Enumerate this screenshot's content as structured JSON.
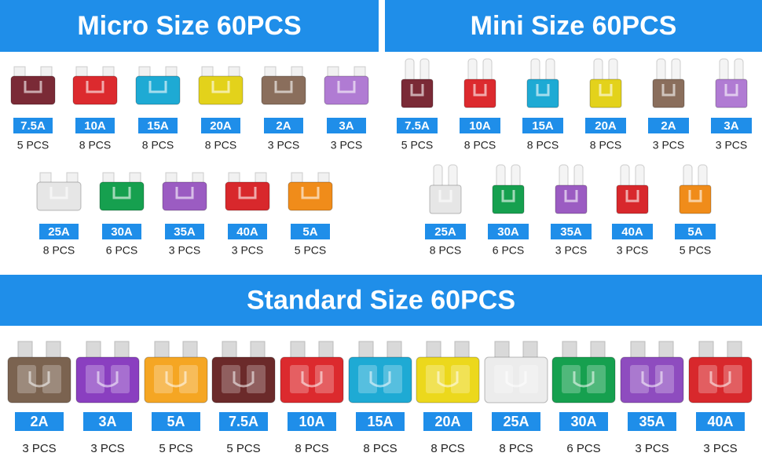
{
  "sections": [
    {
      "title": "Micro Size 60PCS",
      "rows": [
        [
          {
            "rating": "7.5A",
            "count": "5 PCS",
            "color": "#7a2a36"
          },
          {
            "rating": "10A",
            "count": "8 PCS",
            "color": "#dc2a2e"
          },
          {
            "rating": "15A",
            "count": "8 PCS",
            "color": "#1eaad4"
          },
          {
            "rating": "20A",
            "count": "8 PCS",
            "color": "#e3d21b"
          },
          {
            "rating": "2A",
            "count": "3 PCS",
            "color": "#8a6e5c"
          },
          {
            "rating": "3A",
            "count": "3 PCS",
            "color": "#b07bd3"
          }
        ],
        [
          {
            "rating": "25A",
            "count": "8 PCS",
            "color": "#e6e6e6"
          },
          {
            "rating": "30A",
            "count": "6 PCS",
            "color": "#16a04f"
          },
          {
            "rating": "35A",
            "count": "3 PCS",
            "color": "#9b5cc2"
          },
          {
            "rating": "40A",
            "count": "3 PCS",
            "color": "#d8282c"
          },
          {
            "rating": "5A",
            "count": "5 PCS",
            "color": "#f08c1a"
          }
        ]
      ]
    },
    {
      "title": "Mini Size 60PCS",
      "rows": [
        [
          {
            "rating": "7.5A",
            "count": "5 PCS",
            "color": "#7a2a36"
          },
          {
            "rating": "10A",
            "count": "8 PCS",
            "color": "#dc2a2e"
          },
          {
            "rating": "15A",
            "count": "8 PCS",
            "color": "#1eaad4"
          },
          {
            "rating": "20A",
            "count": "8 PCS",
            "color": "#e3d21b"
          },
          {
            "rating": "2A",
            "count": "3 PCS",
            "color": "#8a6e5c"
          },
          {
            "rating": "3A",
            "count": "3 PCS",
            "color": "#b07bd3"
          }
        ],
        [
          {
            "rating": "25A",
            "count": "8 PCS",
            "color": "#e6e6e6"
          },
          {
            "rating": "30A",
            "count": "6 PCS",
            "color": "#16a04f"
          },
          {
            "rating": "35A",
            "count": "3 PCS",
            "color": "#9b5cc2"
          },
          {
            "rating": "40A",
            "count": "3 PCS",
            "color": "#d8282c"
          },
          {
            "rating": "5A",
            "count": "5 PCS",
            "color": "#f08c1a"
          }
        ]
      ]
    },
    {
      "title": "Standard Size 60PCS",
      "rows": [
        [
          {
            "rating": "2A",
            "count": "3 PCS",
            "color": "#7b6350"
          },
          {
            "rating": "3A",
            "count": "3 PCS",
            "color": "#8a3fc0"
          },
          {
            "rating": "5A",
            "count": "5 PCS",
            "color": "#f5a623"
          },
          {
            "rating": "7.5A",
            "count": "5 PCS",
            "color": "#6b2a2a"
          },
          {
            "rating": "10A",
            "count": "8 PCS",
            "color": "#dc2a2e"
          },
          {
            "rating": "15A",
            "count": "8 PCS",
            "color": "#1eaad4"
          },
          {
            "rating": "20A",
            "count": "8 PCS",
            "color": "#ecd81c"
          },
          {
            "rating": "25A",
            "count": "8 PCS",
            "color": "#ececec"
          },
          {
            "rating": "30A",
            "count": "6 PCS",
            "color": "#16a04f"
          },
          {
            "rating": "35A",
            "count": "3 PCS",
            "color": "#8e4cbf"
          },
          {
            "rating": "40A",
            "count": "3 PCS",
            "color": "#d8282c"
          }
        ]
      ]
    }
  ]
}
